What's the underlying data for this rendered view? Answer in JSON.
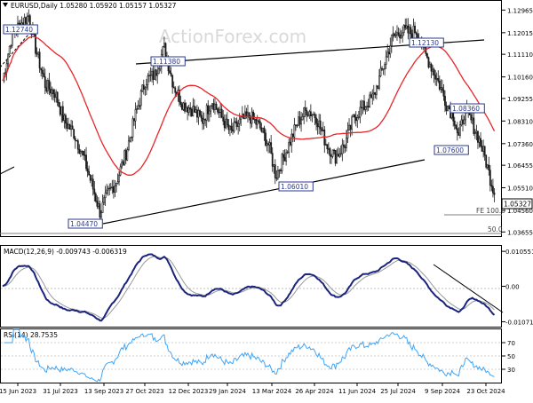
{
  "chart_data": [
    {
      "type": "candlestick",
      "panel": "price",
      "header": "EURUSD,Daily  1.05280 1.05920 1.05157 1.05327",
      "watermark": "ActionForex.com",
      "symbol": "EURUSD",
      "timeframe": "Daily",
      "ohlc": {
        "open": 1.0528,
        "high": 1.0592,
        "low": 1.05157,
        "close": 1.05327
      },
      "y_ticks": [
        "1.12965",
        "1.12015",
        "1.11110",
        "1.10160",
        "1.09255",
        "1.08310",
        "1.07360",
        "1.06455",
        "1.05510",
        "1.04560",
        "1.03655"
      ],
      "y_tick_values": [
        1.12965,
        1.12015,
        1.1111,
        1.1016,
        1.09255,
        1.0831,
        1.0736,
        1.06455,
        1.0551,
        1.0456,
        1.03655
      ],
      "ylim": [
        1.0348,
        1.1335
      ],
      "current_price_label": "1.05327",
      "annotations": [
        "1.12740",
        "1.11380",
        "1.12130",
        "1.08360",
        "1.07600",
        "1.06010",
        "1.04470"
      ],
      "fib_labels": [
        "FE 100.0",
        "50.0"
      ],
      "moving_average_color": "#e8262a",
      "series_color": "#1a1a1a",
      "price_points": [
        [
          0.0,
          1.1
        ],
        [
          0.02,
          1.12
        ],
        [
          0.055,
          1.1274
        ],
        [
          0.07,
          1.113
        ],
        [
          0.09,
          1.098
        ],
        [
          0.11,
          1.095
        ],
        [
          0.13,
          1.083
        ],
        [
          0.15,
          1.078
        ],
        [
          0.17,
          1.068
        ],
        [
          0.19,
          1.055
        ],
        [
          0.205,
          1.0447
        ],
        [
          0.22,
          1.052
        ],
        [
          0.24,
          1.058
        ],
        [
          0.26,
          1.07
        ],
        [
          0.28,
          1.086
        ],
        [
          0.3,
          1.1
        ],
        [
          0.32,
          1.1025
        ],
        [
          0.34,
          1.1138
        ],
        [
          0.36,
          1.098
        ],
        [
          0.38,
          1.09
        ],
        [
          0.4,
          1.088
        ],
        [
          0.42,
          1.083
        ],
        [
          0.44,
          1.092
        ],
        [
          0.46,
          1.085
        ],
        [
          0.48,
          1.078
        ],
        [
          0.5,
          1.083
        ],
        [
          0.52,
          1.085
        ],
        [
          0.54,
          1.081
        ],
        [
          0.56,
          1.073
        ],
        [
          0.575,
          1.0601
        ],
        [
          0.6,
          1.072
        ],
        [
          0.62,
          1.082
        ],
        [
          0.64,
          1.088
        ],
        [
          0.66,
          1.085
        ],
        [
          0.68,
          1.074
        ],
        [
          0.7,
          1.068
        ],
        [
          0.72,
          1.073
        ],
        [
          0.74,
          1.085
        ],
        [
          0.76,
          1.089
        ],
        [
          0.78,
          1.093
        ],
        [
          0.8,
          1.105
        ],
        [
          0.82,
          1.118
        ],
        [
          0.84,
          1.121
        ],
        [
          0.86,
          1.12
        ],
        [
          0.87,
          1.1213
        ],
        [
          0.89,
          1.111
        ],
        [
          0.905,
          1.105
        ],
        [
          0.92,
          1.098
        ],
        [
          0.935,
          1.09
        ],
        [
          0.95,
          1.085
        ],
        [
          0.96,
          1.076
        ],
        [
          0.972,
          1.087
        ],
        [
          0.985,
          1.0836
        ],
        [
          1.0,
          1.077
        ],
        [
          1.015,
          1.068
        ],
        [
          1.025,
          1.06
        ],
        [
          1.035,
          1.0533
        ]
      ]
    },
    {
      "type": "line",
      "panel": "macd",
      "header": "MACD(12,26,9) -0.009743 -0.006319",
      "params": "12,26,9",
      "values": {
        "macd": -0.009743,
        "signal": -0.006319
      },
      "y_ticks": [
        "0.010551",
        "0.00",
        "-0.01071"
      ],
      "y_tick_values": [
        0.010551,
        0.0,
        -0.01071
      ],
      "ylim": [
        -0.0122,
        0.0122
      ],
      "macd_color": "#1a237e",
      "signal_color": "#999999"
    },
    {
      "type": "line",
      "panel": "rsi",
      "header": "RSI(14) 28.7535",
      "period": 14,
      "value": 28.7535,
      "y_ticks": [
        "70",
        "50",
        "30"
      ],
      "y_tick_values": [
        70,
        50,
        30
      ],
      "ylim": [
        10,
        90
      ],
      "line_color": "#42a5f5"
    }
  ],
  "x_axis": {
    "labels": [
      "15 Jun 2023",
      "31 Jul 2023",
      "13 Sep 2023",
      "27 Oct 2023",
      "12 Dec 2023",
      "29 Jan 2024",
      "13 Mar 2024",
      "26 Apr 2024",
      "11 Jun 2024",
      "25 Jul 2024",
      "9 Sep 2024",
      "23 Oct 2024"
    ]
  }
}
